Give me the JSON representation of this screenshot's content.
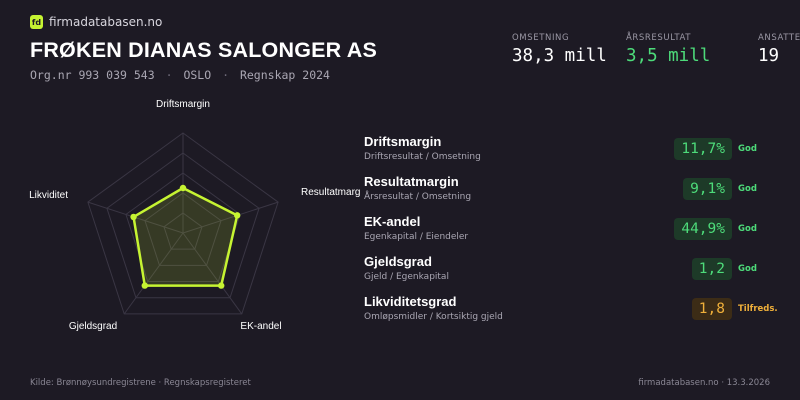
{
  "brand": {
    "logo_mark": "fd",
    "name": "firmadatabasen.no"
  },
  "company": {
    "name": "FRØKEN DIANAS SALONGER AS",
    "org_nr": "Org.nr 993 039 543",
    "city": "OSLO",
    "period": "Regnskap 2024",
    "separator": "·"
  },
  "kpis": [
    {
      "label": "OMSETNING",
      "value": "38,3 mill"
    },
    {
      "label": "ÅRSRESULTAT",
      "value": "3,5 mill"
    },
    {
      "label": "ANSATTE",
      "value": "19"
    }
  ],
  "chart_data": {
    "type": "radar",
    "axes": [
      "Driftsmargin",
      "Resultatmargin",
      "EK-andel",
      "Gjeldsgrad",
      "Likviditet"
    ],
    "values": [
      0.45,
      0.57,
      0.65,
      0.65,
      0.52
    ],
    "color": "#c6f432"
  },
  "metrics": [
    {
      "name": "Driftsmargin",
      "sub": "Driftsresultat / Omsetning",
      "value": "11,7%",
      "status": "God"
    },
    {
      "name": "Resultatmargin",
      "sub": "Årsresultat / Omsetning",
      "value": "9,1%",
      "status": "God"
    },
    {
      "name": "EK-andel",
      "sub": "Egenkapital / Eiendeler",
      "value": "44,9%",
      "status": "God"
    },
    {
      "name": "Gjeldsgrad",
      "sub": "Gjeld / Egenkapital",
      "value": "1,2",
      "status": "God"
    },
    {
      "name": "Likviditetsgrad",
      "sub": "Omløpsmidler / Kortsiktig gjeld",
      "value": "1,8",
      "status": "Tilfreds."
    }
  ],
  "footer": {
    "source": "Kilde: Brønnøysundregistrene · Regnskapsregisteret",
    "site_date": "firmadatabasen.no · 13.3.2026"
  },
  "colors": {
    "background": "#1d1a24",
    "accent": "#c6f432",
    "good": "#4ddb7a",
    "warning": "#f0b03a"
  }
}
